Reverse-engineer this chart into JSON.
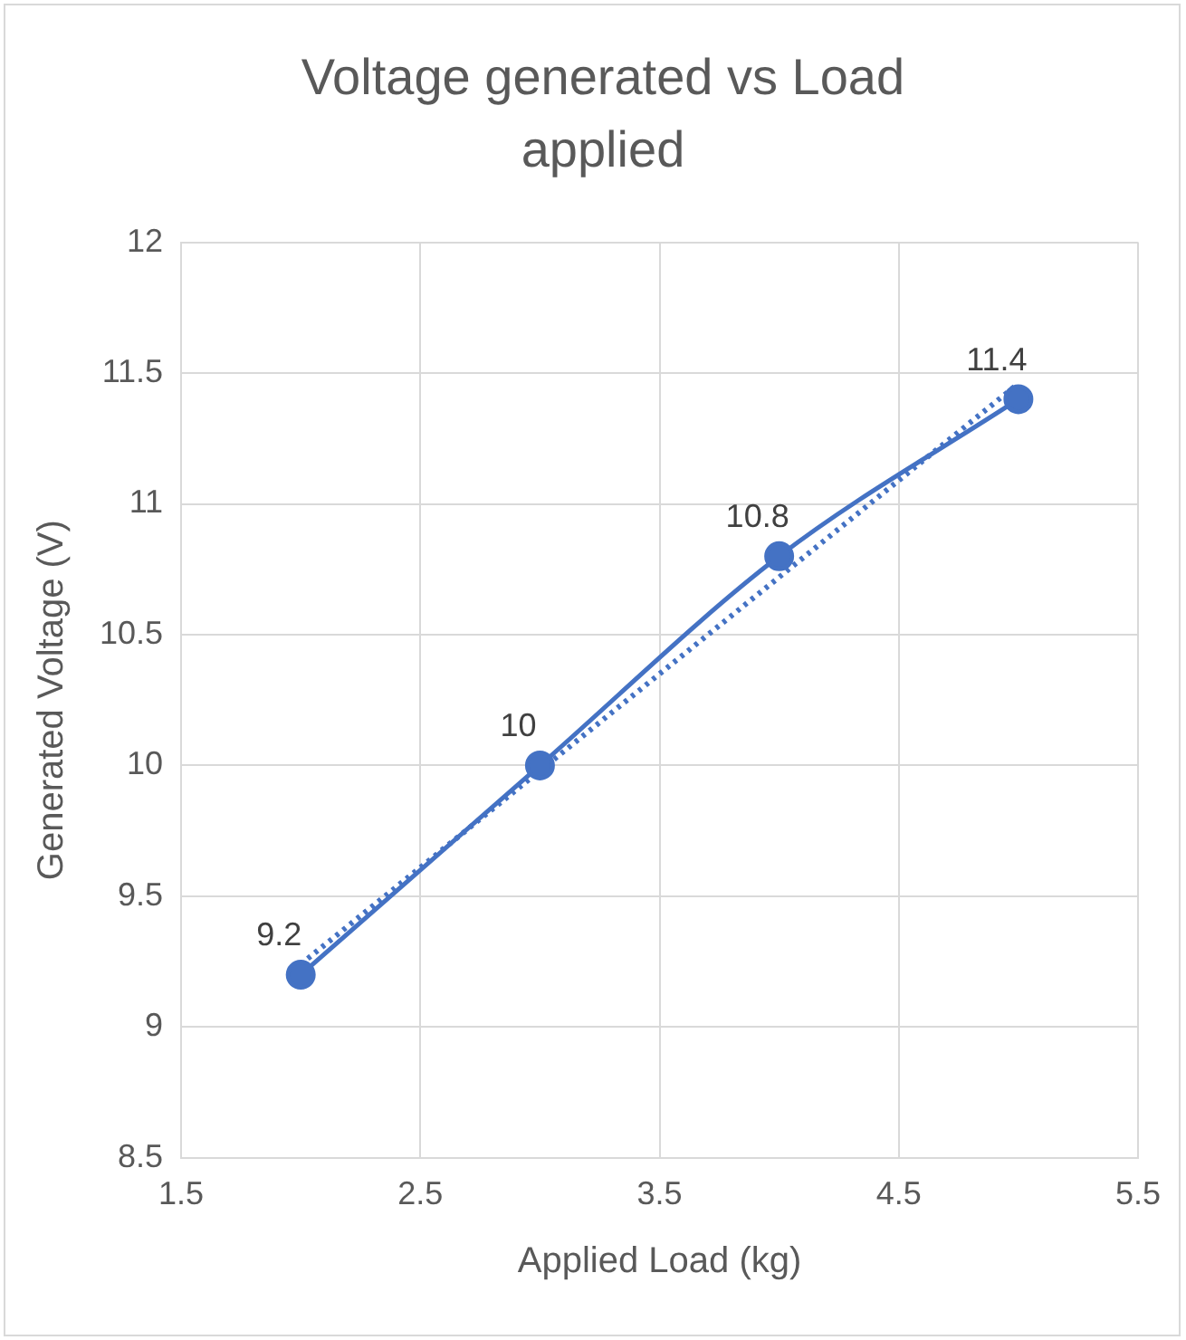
{
  "chart_data": {
    "type": "line",
    "title": "Voltage generated vs Load applied",
    "xlabel": "Applied Load (kg)",
    "ylabel": "Generated Voltage (V)",
    "x": [
      2,
      3,
      4,
      5
    ],
    "series": [
      {
        "color": "#4472c4",
        "values": [
          9.2,
          10,
          10.8,
          11.4
        ],
        "value_labels": [
          "9.2",
          "10",
          "10.8",
          "11.4"
        ],
        "marker": "circle",
        "line_style": "solid"
      },
      {
        "type": "line",
        "color": "#4472c4",
        "x": [
          2,
          5
        ],
        "values": [
          9.24,
          11.46
        ],
        "marker": "none",
        "line_style": "dotted"
      }
    ],
    "xlim": [
      1.5,
      5.5
    ],
    "xticks": [
      1.5,
      2.5,
      3.5,
      4.5,
      5.5
    ],
    "ylim": [
      8.5,
      12
    ],
    "yticks": [
      8.5,
      9,
      9.5,
      10,
      10.5,
      11,
      11.5,
      12
    ],
    "grid": true,
    "legend": false
  }
}
